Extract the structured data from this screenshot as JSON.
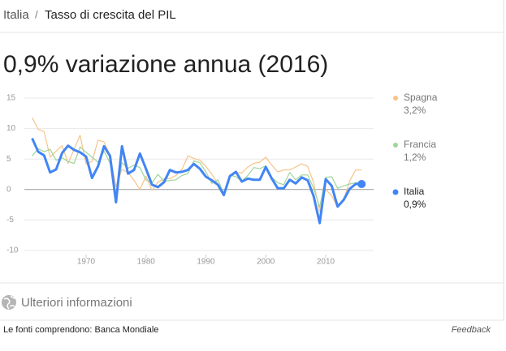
{
  "header": {
    "country": "Italia",
    "separator": "/",
    "title": "Tasso di crescita del PIL"
  },
  "chart_data": {
    "type": "line",
    "title": "0,9% variazione annua (2016)",
    "x": [
      1961,
      1962,
      1963,
      1964,
      1965,
      1966,
      1967,
      1968,
      1969,
      1970,
      1971,
      1972,
      1973,
      1974,
      1975,
      1976,
      1977,
      1978,
      1979,
      1980,
      1981,
      1982,
      1983,
      1984,
      1985,
      1986,
      1987,
      1988,
      1989,
      1990,
      1991,
      1992,
      1993,
      1994,
      1995,
      1996,
      1997,
      1998,
      1999,
      2000,
      2001,
      2002,
      2003,
      2004,
      2005,
      2006,
      2007,
      2008,
      2009,
      2010,
      2011,
      2012,
      2013,
      2014,
      2015,
      2016
    ],
    "xlim": [
      1959.7,
      2018
    ],
    "xticks": [
      1970,
      1980,
      1990,
      2000,
      2010
    ],
    "ylim": [
      -10,
      15
    ],
    "yticks": [
      -10,
      -5,
      0,
      5,
      10,
      15
    ],
    "grid": true,
    "series": [
      {
        "name": "Spagna",
        "color": "#f7c388",
        "last_label": "3,2%",
        "values": [
          11.8,
          9.9,
          9.5,
          5.3,
          6.3,
          7.2,
          4.3,
          6.6,
          8.9,
          4.2,
          4.6,
          8.1,
          7.8,
          5.6,
          0.5,
          3.3,
          2.8,
          1.5,
          0.0,
          2.2,
          -0.1,
          1.2,
          1.8,
          1.8,
          2.3,
          3.3,
          5.5,
          5.1,
          4.8,
          3.8,
          2.5,
          0.9,
          -1.0,
          2.4,
          2.8,
          2.7,
          3.7,
          4.3,
          4.5,
          5.3,
          4.0,
          2.9,
          3.2,
          3.2,
          3.7,
          4.2,
          3.8,
          1.1,
          -3.6,
          0.0,
          -1.0,
          -2.9,
          -1.7,
          1.4,
          3.2,
          3.2
        ]
      },
      {
        "name": "Francia",
        "color": "#9fd59a",
        "last_label": "1,2%",
        "values": [
          5.5,
          6.7,
          6.2,
          6.6,
          4.8,
          5.2,
          4.6,
          4.3,
          7.0,
          6.1,
          5.3,
          4.5,
          6.3,
          4.3,
          -1.0,
          4.4,
          3.5,
          4.0,
          3.6,
          1.6,
          1.1,
          2.5,
          1.3,
          1.5,
          1.6,
          2.3,
          2.6,
          4.7,
          4.4,
          2.9,
          1.0,
          1.6,
          -0.6,
          2.4,
          2.1,
          1.4,
          2.3,
          3.6,
          3.4,
          3.9,
          2.0,
          1.1,
          0.8,
          2.8,
          1.6,
          2.4,
          2.4,
          0.2,
          -2.9,
          2.0,
          2.1,
          0.2,
          0.6,
          0.9,
          1.1,
          1.2
        ]
      },
      {
        "name": "Italia",
        "color": "#4285f4",
        "last_label": "0,9%",
        "values": [
          8.4,
          6.2,
          5.6,
          2.8,
          3.3,
          6.0,
          7.2,
          6.5,
          6.1,
          5.4,
          1.9,
          3.8,
          7.1,
          5.5,
          -2.1,
          7.1,
          2.6,
          3.2,
          5.9,
          3.4,
          0.8,
          0.4,
          1.2,
          3.2,
          2.8,
          2.9,
          3.2,
          4.2,
          3.4,
          2.1,
          1.5,
          0.8,
          -0.9,
          2.2,
          2.9,
          1.3,
          1.8,
          1.6,
          1.6,
          3.7,
          1.8,
          0.2,
          0.2,
          1.6,
          1.0,
          2.0,
          1.5,
          -1.1,
          -5.5,
          1.7,
          0.6,
          -2.8,
          -1.7,
          0.1,
          0.9,
          0.9
        ]
      }
    ]
  },
  "more_info": "Ulteriori informazioni",
  "footer": {
    "sources": "Le fonti comprendono: Banca Mondiale",
    "feedback": "Feedback"
  }
}
